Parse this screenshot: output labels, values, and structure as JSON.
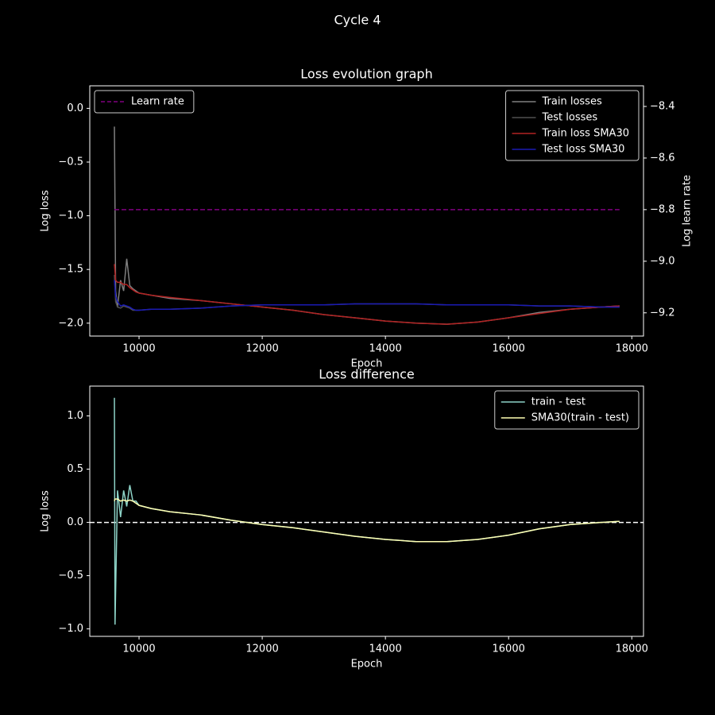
{
  "title": "Cycle 4",
  "chart_data": [
    {
      "type": "line",
      "title": "Loss evolution graph",
      "xlabel": "Epoch",
      "ylabel": "Log loss",
      "y2label": "Log learn rate",
      "x": [
        9600,
        9620,
        9650,
        9700,
        9750,
        9800,
        9850,
        9900,
        9950,
        10000,
        10200,
        10500,
        11000,
        11500,
        12000,
        12500,
        13000,
        13500,
        14000,
        14500,
        15000,
        15500,
        16000,
        16500,
        17000,
        17500,
        17800
      ],
      "series": [
        {
          "name": "Train losses",
          "color": "#808080",
          "style": "solid",
          "values": [
            -0.17,
            -1.7,
            -1.85,
            -1.6,
            -1.7,
            -1.4,
            -1.65,
            -1.68,
            -1.7,
            -1.72,
            -1.74,
            -1.77,
            -1.79,
            -1.82,
            -1.85,
            -1.88,
            -1.92,
            -1.95,
            -1.98,
            -2.0,
            -2.01,
            -1.99,
            -1.95,
            -1.9,
            -1.87,
            -1.85,
            -1.84
          ]
        },
        {
          "name": "Test losses",
          "color": "#505050",
          "style": "solid",
          "values": [
            -1.55,
            -1.8,
            -1.85,
            -1.86,
            -1.84,
            -1.85,
            -1.86,
            -1.88,
            -1.88,
            -1.88,
            -1.87,
            -1.87,
            -1.86,
            -1.84,
            -1.83,
            -1.83,
            -1.83,
            -1.82,
            -1.82,
            -1.82,
            -1.83,
            -1.83,
            -1.83,
            -1.84,
            -1.84,
            -1.85,
            -1.85
          ]
        },
        {
          "name": "Train loss SMA30",
          "color": "#b22222",
          "style": "solid",
          "values": [
            -1.45,
            -1.6,
            -1.62,
            -1.62,
            -1.64,
            -1.64,
            -1.67,
            -1.69,
            -1.71,
            -1.72,
            -1.74,
            -1.76,
            -1.79,
            -1.82,
            -1.85,
            -1.88,
            -1.92,
            -1.95,
            -1.98,
            -2.0,
            -2.01,
            -1.99,
            -1.95,
            -1.91,
            -1.87,
            -1.85,
            -1.84
          ]
        },
        {
          "name": "Test loss SMA30",
          "color": "#1a1ab4",
          "style": "solid",
          "values": [
            -1.6,
            -1.75,
            -1.8,
            -1.84,
            -1.83,
            -1.84,
            -1.85,
            -1.87,
            -1.88,
            -1.88,
            -1.87,
            -1.87,
            -1.86,
            -1.84,
            -1.83,
            -1.83,
            -1.83,
            -1.82,
            -1.82,
            -1.82,
            -1.83,
            -1.83,
            -1.83,
            -1.84,
            -1.84,
            -1.85,
            -1.85
          ]
        },
        {
          "name": "Learn rate",
          "color": "#800080",
          "style": "dashed",
          "axis": "y2",
          "values": [
            -8.8,
            -8.8,
            -8.8,
            -8.8,
            -8.8,
            -8.8,
            -8.8,
            -8.8,
            -8.8,
            -8.8,
            -8.8,
            -8.8,
            -8.8,
            -8.8,
            -8.8,
            -8.8,
            -8.8,
            -8.8,
            -8.8,
            -8.8,
            -8.8,
            -8.8,
            -8.8,
            -8.8,
            -8.8,
            -8.8,
            -8.8
          ]
        }
      ],
      "xlim": [
        9200,
        18190
      ],
      "ylim": [
        -2.12,
        0.21
      ],
      "y2lim": [
        -9.29,
        -8.32
      ],
      "xticks": [
        10000,
        12000,
        14000,
        16000,
        18000
      ],
      "yticks": [
        {
          "value": 0,
          "label": "0.0"
        },
        {
          "value": -0.5,
          "label": "−0.5"
        },
        {
          "value": -1,
          "label": "−1.0"
        },
        {
          "value": -1.5,
          "label": "−1.5"
        },
        {
          "value": -2,
          "label": "−2.0"
        }
      ],
      "y2ticks": [
        {
          "value": -8.4,
          "label": "−8.4"
        },
        {
          "value": -8.6,
          "label": "−8.6"
        },
        {
          "value": -8.8,
          "label": "−8.8"
        },
        {
          "value": -9.0,
          "label": "−9.0"
        },
        {
          "value": -9.2,
          "label": "−9.2"
        }
      ],
      "legend": "upper right",
      "y2_legend": "upper left"
    },
    {
      "type": "line",
      "title": "Loss difference",
      "xlabel": "Epoch",
      "ylabel": "Log loss",
      "x": [
        9600,
        9610,
        9650,
        9700,
        9750,
        9800,
        9850,
        9900,
        9950,
        10000,
        10200,
        10500,
        11000,
        11500,
        12000,
        12500,
        13000,
        13500,
        14000,
        14500,
        15000,
        15500,
        16000,
        16500,
        17000,
        17500,
        17800
      ],
      "series": [
        {
          "name": "train - test",
          "color": "#8dd3c7",
          "style": "solid",
          "values": [
            1.17,
            -0.96,
            0.3,
            0.05,
            0.3,
            0.15,
            0.35,
            0.2,
            0.2,
            0.16,
            0.13,
            0.1,
            0.07,
            0.02,
            -0.02,
            -0.05,
            -0.09,
            -0.13,
            -0.16,
            -0.18,
            -0.18,
            -0.16,
            -0.12,
            -0.06,
            -0.02,
            0.0,
            0.01
          ]
        },
        {
          "name": "SMA30(train - test)",
          "color": "#ffffb3",
          "style": "solid",
          "values": [
            0.2,
            0.22,
            0.22,
            0.2,
            0.21,
            0.2,
            0.21,
            0.2,
            0.18,
            0.16,
            0.13,
            0.1,
            0.07,
            0.02,
            -0.02,
            -0.05,
            -0.09,
            -0.13,
            -0.16,
            -0.18,
            -0.18,
            -0.16,
            -0.12,
            -0.06,
            -0.02,
            0.0,
            0.01
          ]
        }
      ],
      "hlines": [
        {
          "y": 0,
          "color": "#ffffff",
          "style": "dashed"
        }
      ],
      "xlim": [
        9200,
        18190
      ],
      "ylim": [
        -1.07,
        1.28
      ],
      "xticks": [
        10000,
        12000,
        14000,
        16000,
        18000
      ],
      "yticks": [
        {
          "value": 1,
          "label": "1.0"
        },
        {
          "value": 0.5,
          "label": "0.5"
        },
        {
          "value": 0,
          "label": "0.0"
        },
        {
          "value": -0.5,
          "label": "−0.5"
        },
        {
          "value": -1,
          "label": "−1.0"
        }
      ],
      "legend": "upper right"
    }
  ]
}
